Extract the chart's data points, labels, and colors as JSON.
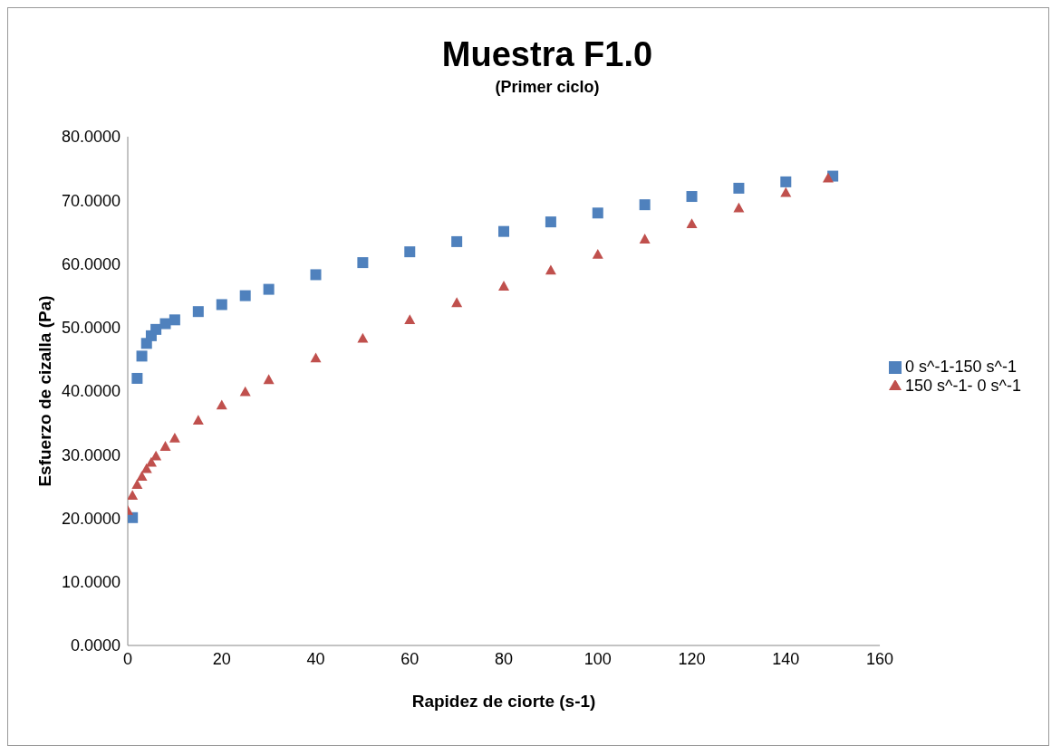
{
  "chart_data": {
    "type": "scatter",
    "title": "Muestra F1.0",
    "subtitle": "(Primer ciclo)",
    "xlabel": "Rapidez de ciorte (s-1)",
    "ylabel": "Esfuerzo de cizalla (Pa)",
    "xlim": [
      0,
      160
    ],
    "xticks": [
      0,
      20,
      40,
      60,
      80,
      100,
      120,
      140,
      160
    ],
    "ylim": [
      0,
      80
    ],
    "yticks": [
      {
        "value": 0,
        "label": "0.0000"
      },
      {
        "value": 10,
        "label": "10.0000"
      },
      {
        "value": 20,
        "label": "20.0000"
      },
      {
        "value": 30,
        "label": "30.0000"
      },
      {
        "value": 40,
        "label": "40.0000"
      },
      {
        "value": 50,
        "label": "50.0000"
      },
      {
        "value": 60,
        "label": "60.0000"
      },
      {
        "value": 70,
        "label": "70.0000"
      },
      {
        "value": 80,
        "label": "80.0000"
      }
    ],
    "grid": false,
    "legend": "right",
    "series": [
      {
        "name": "0 s^-1-150 s^-1",
        "color": "#4f81bd",
        "marker": "square",
        "x": [
          1,
          2,
          3,
          4,
          5,
          6,
          8,
          10,
          15,
          20,
          25,
          30,
          40,
          50,
          60,
          70,
          80,
          90,
          100,
          110,
          120,
          130,
          140,
          150
        ],
        "values": [
          20.1,
          42,
          45.5,
          47.5,
          48.7,
          49.7,
          50.6,
          51.2,
          52.5,
          53.6,
          55,
          56,
          58.3,
          60.2,
          61.9,
          63.5,
          65.1,
          66.6,
          68,
          69.3,
          70.6,
          71.9,
          72.9,
          73.8
        ]
      },
      {
        "name": "150 s^-1- 0 s^-1",
        "color": "#c0504d",
        "marker": "triangle",
        "x": [
          0,
          1,
          2,
          3,
          4,
          5,
          6,
          8,
          10,
          15,
          20,
          25,
          30,
          40,
          50,
          60,
          70,
          80,
          90,
          100,
          110,
          120,
          130,
          140,
          149
        ],
        "values": [
          21.2,
          23.6,
          25.3,
          26.6,
          27.8,
          28.8,
          29.8,
          31.3,
          32.6,
          35.4,
          37.8,
          39.9,
          41.8,
          45.2,
          48.3,
          51.2,
          53.9,
          56.5,
          59,
          61.5,
          63.9,
          66.3,
          68.8,
          71.2,
          73.5
        ]
      }
    ]
  }
}
